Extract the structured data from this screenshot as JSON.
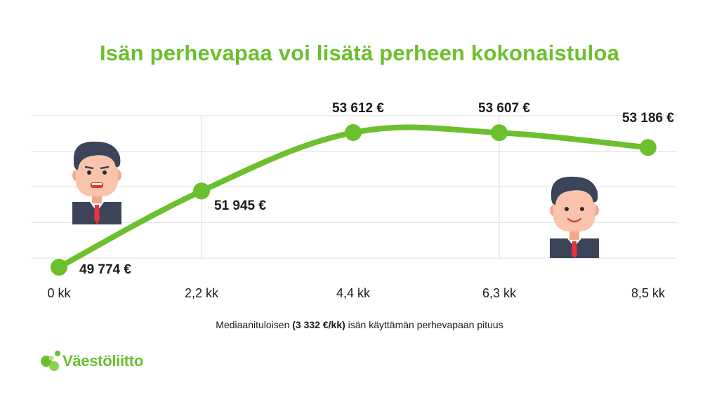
{
  "title": "Isän perhevapaa voi lisätä perheen kokonaistuloa",
  "caption": {
    "prefix": "Mediaanituloisen ",
    "bold": "(3 332 €/kk)",
    "suffix": " isän käyttämän perhevapaan pituus"
  },
  "logo": {
    "text": "Väestöliitto",
    "color": "#6cbf2d"
  },
  "colors": {
    "accent": "#6cbf2d",
    "grid": "#dcdcdc",
    "text": "#1a1a1a"
  },
  "chart_data": {
    "type": "line",
    "categories": [
      "0 kk",
      "2,2 kk",
      "4,4 kk",
      "6,3 kk",
      "8,5 kk"
    ],
    "values": [
      49774,
      51945,
      53612,
      53607,
      53186
    ],
    "labels": [
      "49 774 €",
      "51 945 €",
      "53 612 €",
      "53 607 €",
      "53 186 €"
    ],
    "ylim": [
      49500,
      54000
    ],
    "grid": true,
    "legend": "none"
  },
  "illustrations": [
    "worried-man-icon",
    "smiling-man-icon"
  ]
}
